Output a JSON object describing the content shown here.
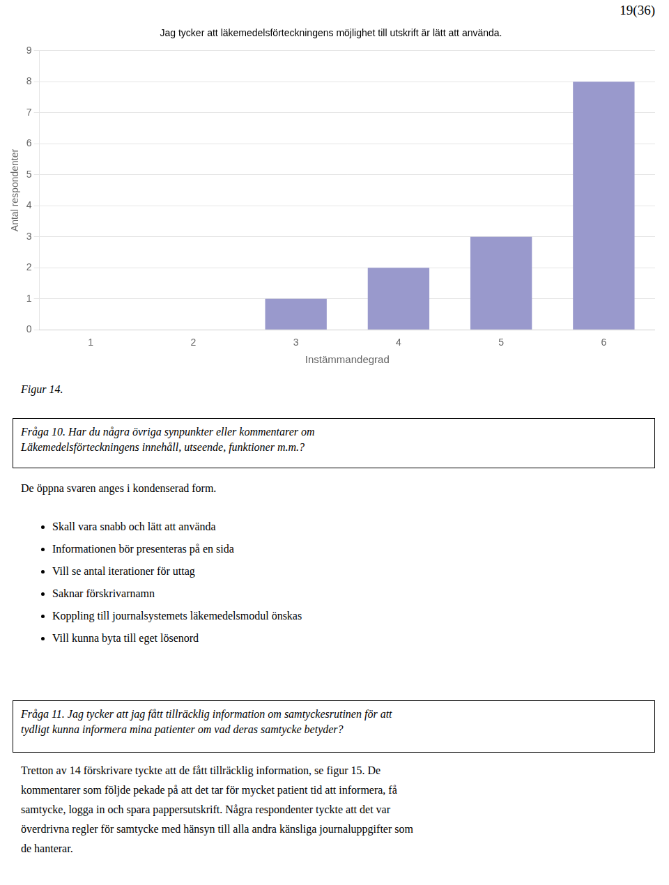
{
  "page_number": "19(36)",
  "chart_data": {
    "type": "bar",
    "title": "Jag tycker att läkemedelsförteckningens möjlighet till utskrift är lätt att använda.",
    "categories": [
      1,
      2,
      3,
      4,
      5,
      6
    ],
    "values": [
      0,
      0,
      1,
      2,
      3,
      8
    ],
    "color": "#9999cc",
    "xlabel": "Instämmandegrad",
    "ylabel": "Antal respondenter",
    "ylim": [
      0,
      9
    ],
    "yticks": [
      0,
      1,
      2,
      3,
      4,
      5,
      6,
      7,
      8,
      9
    ],
    "grid": true
  },
  "figure_label": "Figur 14.",
  "question_10": [
    "Fråga 10. Har du några övriga synpunkter eller kommentarer om",
    "Läkemedelsförteckningens innehåll, utseende, funktioner m.m.?"
  ],
  "open_answer_intro": "De öppna svaren anges i kondenserad form.",
  "bullet_points": [
    "Skall vara snabb och lätt att använda",
    "Informationen bör presenteras på en sida",
    "Vill se antal iterationer för uttag",
    "Saknar förskrivarnamn",
    "Koppling till journalsystemets läkemedelsmodul önskas",
    "Vill kunna byta till eget lösenord"
  ],
  "question_11": [
    "Fråga 11. Jag tycker att jag fått tillräcklig information om samtyckesrutinen för att",
    "tydligt kunna informera mina patienter om vad deras samtycke betyder?"
  ],
  "body_lines": [
    "Tretton av 14 förskrivare tyckte att de fått tillräcklig information, se figur 15. De",
    "kommentarer som följde pekade på att det tar för mycket patient tid att informera, få",
    "samtycke, logga in och spara pappersutskrift. Några respondenter tyckte att det var",
    "överdrivna regler för samtycke med hänsyn till alla andra känsliga journaluppgifter som",
    "de hanterar."
  ]
}
